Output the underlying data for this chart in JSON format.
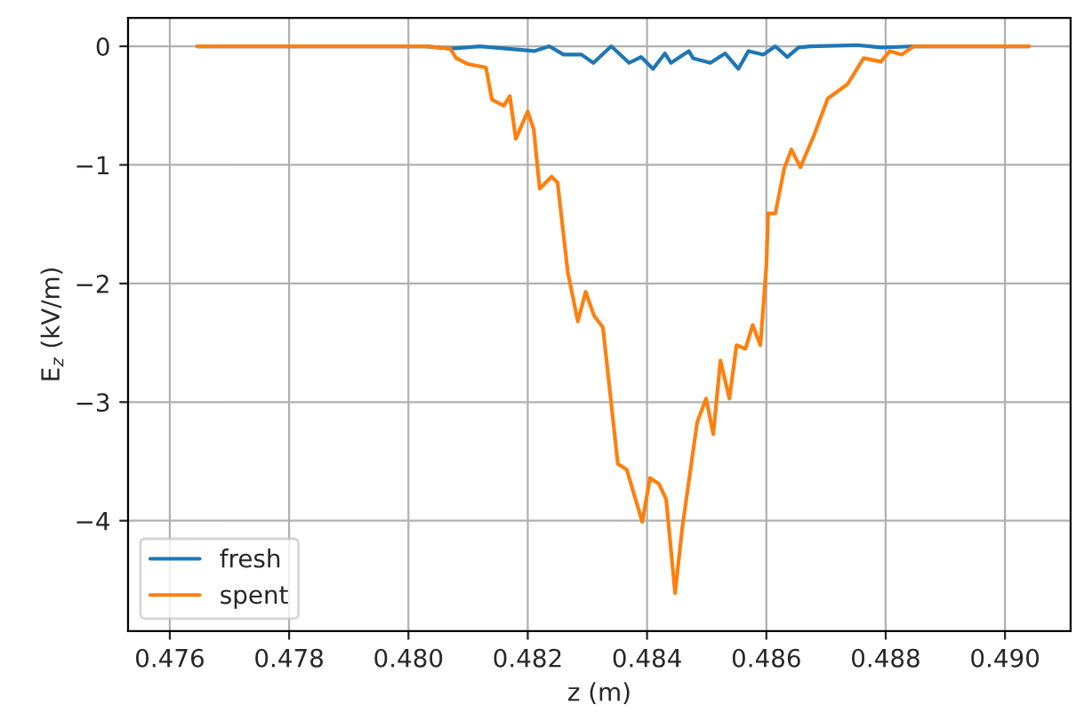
{
  "chart_data": {
    "type": "line",
    "xlabel": "z (m)",
    "ylabel": "E$_{z}$ (kV/m)",
    "xlim": [
      0.4753,
      0.4911
    ],
    "ylim": [
      -4.93,
      0.24
    ],
    "xticks": [
      {
        "value": 0.476,
        "label": "0.476"
      },
      {
        "value": 0.478,
        "label": "0.478"
      },
      {
        "value": 0.48,
        "label": "0.480"
      },
      {
        "value": 0.482,
        "label": "0.482"
      },
      {
        "value": 0.484,
        "label": "0.484"
      },
      {
        "value": 0.486,
        "label": "0.486"
      },
      {
        "value": 0.488,
        "label": "0.488"
      },
      {
        "value": 0.49,
        "label": "0.490"
      }
    ],
    "yticks": [
      {
        "value": 0,
        "label": "0"
      },
      {
        "value": -1,
        "label": "−1"
      },
      {
        "value": -2,
        "label": "−2"
      },
      {
        "value": -3,
        "label": "−3"
      },
      {
        "value": -4,
        "label": "−4"
      }
    ],
    "grid": true,
    "legend": "bottom left",
    "series": [
      {
        "name": "fresh",
        "color": "#1f77b4",
        "x": [
          0.47646,
          0.4803,
          0.4807,
          0.4812,
          0.48211,
          0.48236,
          0.4826,
          0.4829,
          0.4831,
          0.4834,
          0.4837,
          0.4839,
          0.4841,
          0.4843,
          0.4844,
          0.4847,
          0.48477,
          0.48506,
          0.48531,
          0.48553,
          0.4857,
          0.48595,
          0.48615,
          0.48635,
          0.48654,
          0.48674,
          0.48753,
          0.48792,
          0.4885,
          0.4904
        ],
        "values": [
          0,
          0,
          -0.02,
          0,
          -0.04,
          0,
          -0.07,
          -0.07,
          -0.14,
          0,
          -0.14,
          -0.09,
          -0.19,
          -0.06,
          -0.14,
          -0.04,
          -0.1,
          -0.14,
          -0.06,
          -0.19,
          -0.04,
          -0.07,
          0,
          -0.09,
          -0.01,
          0,
          0.01,
          -0.01,
          0,
          0
        ]
      },
      {
        "name": "spent",
        "color": "#ff7f0e",
        "x": [
          0.47646,
          0.4803,
          0.4807,
          0.4808,
          0.481,
          0.4813,
          0.4814,
          0.4816,
          0.4817,
          0.4818,
          0.482,
          0.4821,
          0.4822,
          0.4824,
          0.4825,
          0.48267,
          0.48284,
          0.48297,
          0.48311,
          0.48326,
          0.48351,
          0.48366,
          0.48392,
          0.48405,
          0.4842,
          0.48432,
          0.48447,
          0.48459,
          0.48484,
          0.48499,
          0.48511,
          0.48523,
          0.48538,
          0.4855,
          0.48565,
          0.48577,
          0.4859,
          0.486,
          0.48603,
          0.48615,
          0.4863,
          0.48642,
          0.48657,
          0.48679,
          0.48703,
          0.48736,
          0.48763,
          0.48792,
          0.48807,
          0.48827,
          0.48847,
          0.4904
        ],
        "values": [
          0,
          0,
          -0.02,
          -0.1,
          -0.15,
          -0.18,
          -0.45,
          -0.5,
          -0.42,
          -0.78,
          -0.55,
          -0.7,
          -1.2,
          -1.1,
          -1.15,
          -1.9,
          -2.32,
          -2.07,
          -2.27,
          -2.37,
          -3.52,
          -3.57,
          -4.01,
          -3.64,
          -3.69,
          -3.82,
          -4.61,
          -4.06,
          -3.17,
          -2.97,
          -3.27,
          -2.65,
          -2.97,
          -2.52,
          -2.55,
          -2.35,
          -2.52,
          -1.85,
          -1.41,
          -1.41,
          -1.03,
          -0.87,
          -1.02,
          -0.76,
          -0.44,
          -0.32,
          -0.1,
          -0.13,
          -0.04,
          -0.07,
          0,
          0
        ]
      }
    ]
  }
}
